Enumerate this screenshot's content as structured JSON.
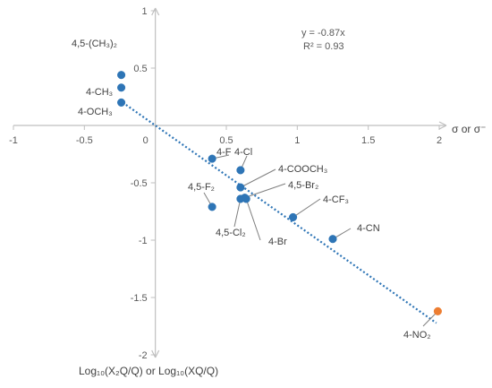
{
  "chart_data": {
    "type": "scatter",
    "xlabel": "σ or σ⁻",
    "ylabel": "Log₁₀(X₂Q/Q) or Log₁₀(XQ/Q)",
    "xlim": [
      -1,
      2
    ],
    "ylim": [
      -2,
      1
    ],
    "xticks": [
      "-1",
      "-0.5",
      "0",
      "0.5",
      "1",
      "1.5",
      "2"
    ],
    "yticks": [
      "1",
      "0.5",
      "0",
      "-0.5",
      "-1",
      "-1.5",
      "-2"
    ],
    "equation": "y = -0.87x",
    "r_squared": "R² = 0.93",
    "trendline": {
      "slope": -0.87,
      "x_range": [
        -0.23,
        1.98
      ],
      "color": "#2e75b6"
    },
    "points": [
      {
        "label": "4,5-(CH₃)₂",
        "x": -0.24,
        "y": 0.44,
        "color": "#2e75b6"
      },
      {
        "label": "4-CH₃",
        "x": -0.24,
        "y": 0.33,
        "color": "#2e75b6"
      },
      {
        "label": "4-OCH₃",
        "x": -0.24,
        "y": 0.2,
        "color": "#2e75b6"
      },
      {
        "label": "4-F",
        "x": 0.4,
        "y": -0.29,
        "color": "#2e75b6"
      },
      {
        "label": "4-Cl",
        "x": 0.6,
        "y": -0.39,
        "color": "#2e75b6"
      },
      {
        "label": "4-COOCH₃",
        "x": 0.6,
        "y": -0.54,
        "color": "#2e75b6"
      },
      {
        "label": "4,5-Br₂",
        "x": 0.63,
        "y": -0.63,
        "color": "#2e75b6"
      },
      {
        "label": "4,5-Cl₂",
        "x": 0.6,
        "y": -0.64,
        "color": "#2e75b6"
      },
      {
        "label": "4-Br",
        "x": 0.64,
        "y": -0.64,
        "color": "#2e75b6"
      },
      {
        "label": "4,5-F₂",
        "x": 0.4,
        "y": -0.71,
        "color": "#2e75b6"
      },
      {
        "label": "4-CF₃",
        "x": 0.97,
        "y": -0.8,
        "color": "#2e75b6"
      },
      {
        "label": "4-CN",
        "x": 1.25,
        "y": -0.99,
        "color": "#2e75b6"
      },
      {
        "label": "4-NO₂",
        "x": 1.99,
        "y": -1.62,
        "color": "#ed7d31"
      }
    ],
    "grid": false,
    "legend": "none"
  }
}
